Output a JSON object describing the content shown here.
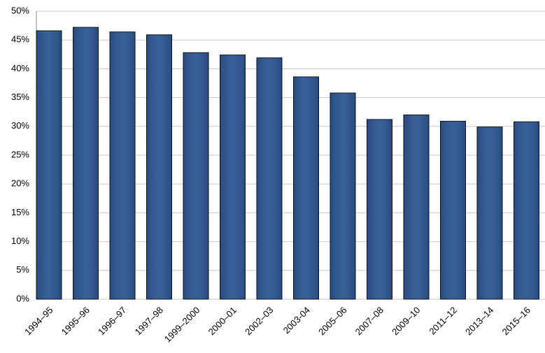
{
  "chart_data": {
    "type": "bar",
    "categories": [
      "1994–95",
      "1995–96",
      "1996–97",
      "1997–98",
      "1999–2000",
      "2000–01",
      "2002–03",
      "2003-04",
      "2005–06",
      "2007–08",
      "2009–10",
      "2011–12",
      "2013–14",
      "2015–16"
    ],
    "values": [
      46.6,
      47.2,
      46.4,
      45.9,
      42.8,
      42.4,
      41.9,
      38.6,
      35.8,
      31.2,
      32.0,
      30.9,
      29.9,
      30.8
    ],
    "color": "#2b5591",
    "ylim": [
      0,
      50
    ],
    "yticks": [
      {
        "value": 0,
        "label": "0%"
      },
      {
        "value": 5,
        "label": "5%"
      },
      {
        "value": 10,
        "label": "10%"
      },
      {
        "value": 15,
        "label": "15%"
      },
      {
        "value": 20,
        "label": "20%"
      },
      {
        "value": 25,
        "label": "25%"
      },
      {
        "value": 30,
        "label": "30%"
      },
      {
        "value": 35,
        "label": "35%"
      },
      {
        "value": 40,
        "label": "40%"
      },
      {
        "value": 45,
        "label": "45%"
      },
      {
        "value": 50,
        "label": "50%"
      }
    ],
    "grid": true
  }
}
